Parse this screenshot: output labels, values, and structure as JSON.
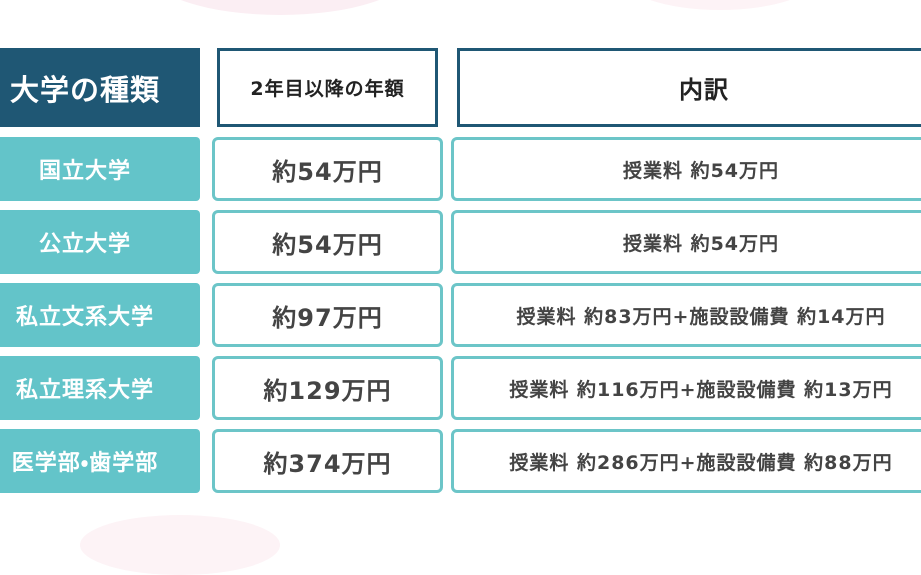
{
  "table": {
    "header": [
      "大学の種類",
      "2年目以降の年額",
      "内訳"
    ],
    "rows": [
      [
        "国立大学",
        "約54万円",
        "授業料 約54万円"
      ],
      [
        "公立大学",
        "約54万円",
        "授業料 約54万円"
      ],
      [
        "私立文系大学",
        "約97万円",
        "授業料 約83万円+施設設備費 約14万円"
      ],
      [
        "私立理系大学",
        "約129万円",
        "授業料 約116万円+施設設備費 約13万円"
      ],
      [
        "医学部・歯学部",
        "約374万円",
        "授業料 約286万円+施設設備費 約88万円"
      ]
    ]
  }
}
